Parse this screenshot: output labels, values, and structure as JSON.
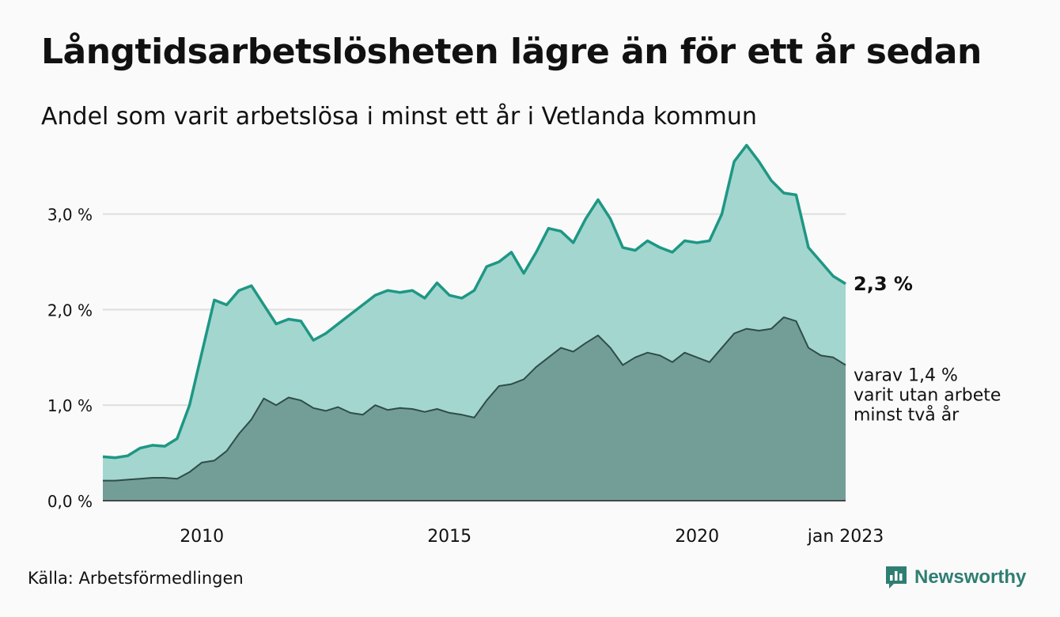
{
  "header": {
    "title": "Långtidsarbetslösheten lägre än för ett år sedan",
    "subtitle": "Andel som varit arbetslösa i minst ett år i Vetlanda kommun"
  },
  "footer": {
    "source": "Källa: Arbetsförmedlingen",
    "brand": "Newsworthy"
  },
  "colors": {
    "series1_line": "#1e9784",
    "series1_fill": "#a3d6cf",
    "series2_line": "#2f4d47",
    "series2_fill": "#739e98",
    "gridline": "#dddddd"
  },
  "chart_data": {
    "type": "area",
    "title": "Långtidsarbetslösheten lägre än för ett år sedan",
    "subtitle": "Andel som varit arbetslösa i minst ett år i Vetlanda kommun",
    "x_start": "2008-01",
    "x_end": "2023-01",
    "x_ticks": [
      {
        "date": "2010-01",
        "label": "2010"
      },
      {
        "date": "2015-01",
        "label": "2015"
      },
      {
        "date": "2020-01",
        "label": "2020"
      },
      {
        "date": "2023-01",
        "label": "jan 2023"
      }
    ],
    "y_ticks": [
      {
        "value": 0,
        "label": "0,0 %"
      },
      {
        "value": 1,
        "label": "1,0 %"
      },
      {
        "value": 2,
        "label": "2,0 %"
      },
      {
        "value": 3,
        "label": "3,0 %"
      }
    ],
    "ylim": [
      0,
      3.75
    ],
    "grid": true,
    "series": [
      {
        "key": "long",
        "points": [
          [
            "2008-01",
            0.46
          ],
          [
            "2008-04",
            0.45
          ],
          [
            "2008-07",
            0.47
          ],
          [
            "2008-10",
            0.55
          ],
          [
            "2009-01",
            0.58
          ],
          [
            "2009-04",
            0.57
          ],
          [
            "2009-07",
            0.65
          ],
          [
            "2009-10",
            1.0
          ],
          [
            "2010-01",
            1.55
          ],
          [
            "2010-04",
            2.1
          ],
          [
            "2010-07",
            2.05
          ],
          [
            "2010-10",
            2.2
          ],
          [
            "2011-01",
            2.25
          ],
          [
            "2011-04",
            2.05
          ],
          [
            "2011-07",
            1.85
          ],
          [
            "2011-10",
            1.9
          ],
          [
            "2012-01",
            1.88
          ],
          [
            "2012-04",
            1.68
          ],
          [
            "2012-07",
            1.75
          ],
          [
            "2012-10",
            1.85
          ],
          [
            "2013-01",
            1.95
          ],
          [
            "2013-04",
            2.05
          ],
          [
            "2013-07",
            2.15
          ],
          [
            "2013-10",
            2.2
          ],
          [
            "2014-01",
            2.18
          ],
          [
            "2014-04",
            2.2
          ],
          [
            "2014-07",
            2.12
          ],
          [
            "2014-10",
            2.28
          ],
          [
            "2015-01",
            2.15
          ],
          [
            "2015-04",
            2.12
          ],
          [
            "2015-07",
            2.2
          ],
          [
            "2015-10",
            2.45
          ],
          [
            "2016-01",
            2.5
          ],
          [
            "2016-04",
            2.6
          ],
          [
            "2016-07",
            2.38
          ],
          [
            "2016-10",
            2.6
          ],
          [
            "2017-01",
            2.85
          ],
          [
            "2017-04",
            2.82
          ],
          [
            "2017-07",
            2.7
          ],
          [
            "2017-10",
            2.95
          ],
          [
            "2018-01",
            3.15
          ],
          [
            "2018-04",
            2.95
          ],
          [
            "2018-07",
            2.65
          ],
          [
            "2018-10",
            2.62
          ],
          [
            "2019-01",
            2.72
          ],
          [
            "2019-04",
            2.65
          ],
          [
            "2019-07",
            2.6
          ],
          [
            "2019-10",
            2.72
          ],
          [
            "2020-01",
            2.7
          ],
          [
            "2020-04",
            2.72
          ],
          [
            "2020-07",
            3.0
          ],
          [
            "2020-10",
            3.55
          ],
          [
            "2021-01",
            3.72
          ],
          [
            "2021-04",
            3.55
          ],
          [
            "2021-07",
            3.35
          ],
          [
            "2021-10",
            3.22
          ],
          [
            "2022-01",
            3.2
          ],
          [
            "2022-04",
            2.65
          ],
          [
            "2022-07",
            2.5
          ],
          [
            "2022-10",
            2.35
          ],
          [
            "2023-01",
            2.27
          ]
        ]
      },
      {
        "key": "two_years",
        "points": [
          [
            "2008-01",
            0.21
          ],
          [
            "2008-04",
            0.21
          ],
          [
            "2008-07",
            0.22
          ],
          [
            "2008-10",
            0.23
          ],
          [
            "2009-01",
            0.24
          ],
          [
            "2009-04",
            0.24
          ],
          [
            "2009-07",
            0.23
          ],
          [
            "2009-10",
            0.3
          ],
          [
            "2010-01",
            0.4
          ],
          [
            "2010-04",
            0.42
          ],
          [
            "2010-07",
            0.52
          ],
          [
            "2010-10",
            0.7
          ],
          [
            "2011-01",
            0.85
          ],
          [
            "2011-04",
            1.07
          ],
          [
            "2011-07",
            1.0
          ],
          [
            "2011-10",
            1.08
          ],
          [
            "2012-01",
            1.05
          ],
          [
            "2012-04",
            0.97
          ],
          [
            "2012-07",
            0.94
          ],
          [
            "2012-10",
            0.98
          ],
          [
            "2013-01",
            0.92
          ],
          [
            "2013-04",
            0.9
          ],
          [
            "2013-07",
            1.0
          ],
          [
            "2013-10",
            0.95
          ],
          [
            "2014-01",
            0.97
          ],
          [
            "2014-04",
            0.96
          ],
          [
            "2014-07",
            0.93
          ],
          [
            "2014-10",
            0.96
          ],
          [
            "2015-01",
            0.92
          ],
          [
            "2015-04",
            0.9
          ],
          [
            "2015-07",
            0.87
          ],
          [
            "2015-10",
            1.05
          ],
          [
            "2016-01",
            1.2
          ],
          [
            "2016-04",
            1.22
          ],
          [
            "2016-07",
            1.27
          ],
          [
            "2016-10",
            1.4
          ],
          [
            "2017-01",
            1.5
          ],
          [
            "2017-04",
            1.6
          ],
          [
            "2017-07",
            1.56
          ],
          [
            "2017-10",
            1.65
          ],
          [
            "2018-01",
            1.73
          ],
          [
            "2018-04",
            1.6
          ],
          [
            "2018-07",
            1.42
          ],
          [
            "2018-10",
            1.5
          ],
          [
            "2019-01",
            1.55
          ],
          [
            "2019-04",
            1.52
          ],
          [
            "2019-07",
            1.45
          ],
          [
            "2019-10",
            1.55
          ],
          [
            "2020-01",
            1.5
          ],
          [
            "2020-04",
            1.45
          ],
          [
            "2020-07",
            1.6
          ],
          [
            "2020-10",
            1.75
          ],
          [
            "2021-01",
            1.8
          ],
          [
            "2021-04",
            1.78
          ],
          [
            "2021-07",
            1.8
          ],
          [
            "2021-10",
            1.92
          ],
          [
            "2022-01",
            1.88
          ],
          [
            "2022-04",
            1.6
          ],
          [
            "2022-07",
            1.52
          ],
          [
            "2022-10",
            1.5
          ],
          [
            "2023-01",
            1.42
          ]
        ]
      }
    ],
    "end_labels": {
      "long": "2,3 %",
      "two_years_lines": [
        "varav 1,4 %",
        "varit utan arbete",
        "minst två år"
      ]
    }
  }
}
